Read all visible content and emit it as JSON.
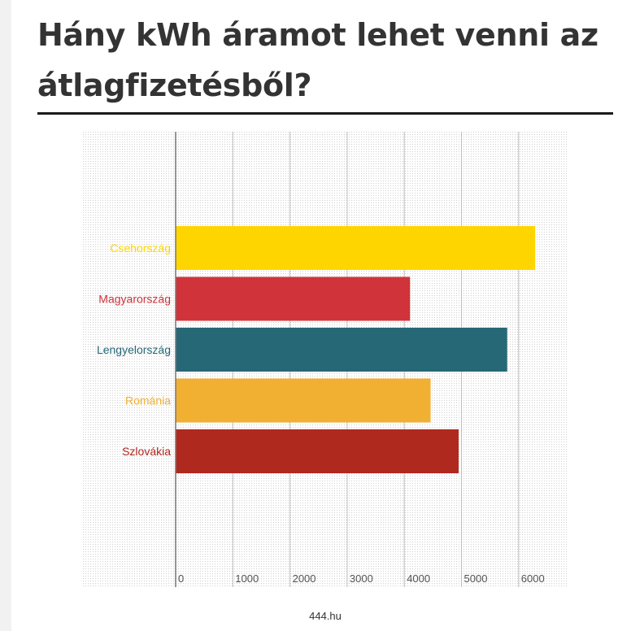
{
  "title": "Hány kWh áramot lehet venni az átlagfizetésből?",
  "source": "444.hu",
  "chart_data": {
    "type": "bar",
    "orientation": "horizontal",
    "categories": [
      "Csehország",
      "Magyarország",
      "Lengyelország",
      "Románia",
      "Szlovákia"
    ],
    "values": [
      6290,
      4100,
      5800,
      4460,
      4950
    ],
    "colors": [
      "#ffd500",
      "#d03339",
      "#276877",
      "#f1b032",
      "#b0291f"
    ],
    "xlim": [
      0,
      6600
    ],
    "xticks": [
      0,
      1000,
      2000,
      3000,
      4000,
      5000,
      6000
    ],
    "grid": true,
    "title": "",
    "xlabel": "",
    "ylabel": ""
  }
}
